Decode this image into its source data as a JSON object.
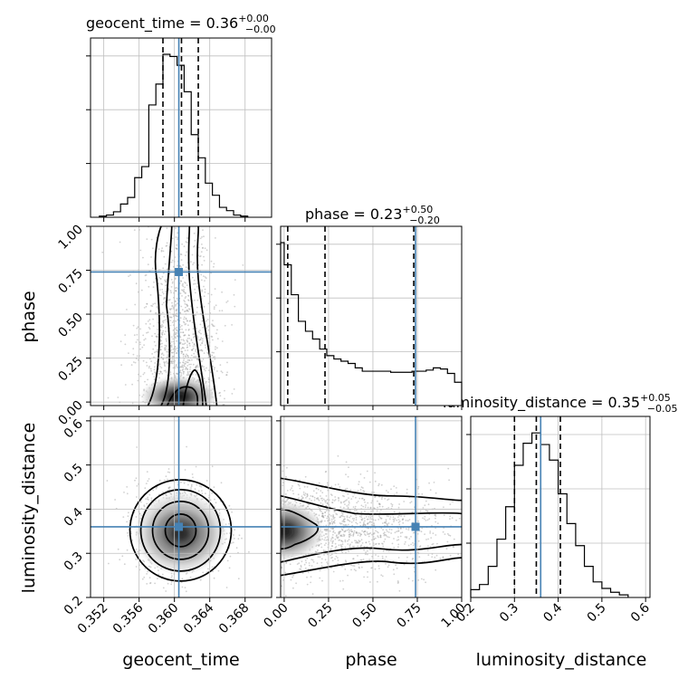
{
  "colors": {
    "truth": "#4682b4",
    "hist": "#000000",
    "grid": "#bfbfbf",
    "quantile": "#000000"
  },
  "chart_data": {
    "type": "corner",
    "parameters": [
      "geocent_time",
      "phase",
      "luminosity_distance"
    ],
    "truths": {
      "geocent_time": 0.3605,
      "phase": 0.74,
      "luminosity_distance": 0.36
    },
    "titles": {
      "geocent_time": {
        "name": "geocent_time",
        "median": "0.36",
        "plus": "+0.00",
        "minus": "−0.00"
      },
      "phase": {
        "name": "phase",
        "median": "0.23",
        "plus": "+0.50",
        "minus": "−0.20"
      },
      "luminosity_distance": {
        "name": "luminosity_distance",
        "median": "0.35",
        "plus": "+0.05",
        "minus": "−0.05"
      }
    },
    "ranges": {
      "geocent_time": [
        0.3505,
        0.371
      ],
      "phase": [
        -0.02,
        1.0
      ],
      "luminosity_distance": [
        0.2,
        0.61
      ]
    },
    "ticks": {
      "geocent_time": {
        "values": [
          0.352,
          0.356,
          0.36,
          0.364,
          0.368
        ],
        "labels": [
          "0.352",
          "0.356",
          "0.360",
          "0.364",
          "0.368"
        ]
      },
      "phase": {
        "values": [
          0.0,
          0.25,
          0.5,
          0.75,
          1.0
        ],
        "labels": [
          "0.00",
          "0.25",
          "0.50",
          "0.75",
          "1.00"
        ]
      },
      "luminosity_distance": {
        "values": [
          0.2,
          0.3,
          0.4,
          0.5,
          0.6
        ],
        "labels": [
          "0.2",
          "0.3",
          "0.4",
          "0.5",
          "0.6"
        ]
      }
    },
    "quantiles": {
      "geocent_time": [
        0.3587,
        0.3608,
        0.3627
      ],
      "phase": [
        0.02,
        0.23,
        0.73
      ],
      "luminosity_distance": [
        0.3,
        0.35,
        0.405
      ]
    },
    "hist_geocent_time": {
      "bin_edges": [
        0.3515,
        0.3523,
        0.3531,
        0.3539,
        0.3547,
        0.3555,
        0.3563,
        0.3571,
        0.3579,
        0.3587,
        0.3595,
        0.3603,
        0.3611,
        0.3619,
        0.3627,
        0.3635,
        0.3643,
        0.3651,
        0.3659,
        0.3667,
        0.3675,
        0.3683
      ],
      "counts": [
        1,
        2,
        5,
        12,
        18,
        36,
        46,
        102,
        121,
        148,
        146,
        138,
        114,
        75,
        54,
        31,
        20,
        9,
        6,
        2,
        1
      ]
    },
    "hist_phase": {
      "bin_edges": [
        -0.02,
        0.0,
        0.04,
        0.08,
        0.12,
        0.16,
        0.2,
        0.24,
        0.28,
        0.32,
        0.36,
        0.4,
        0.44,
        0.48,
        0.52,
        0.56,
        0.6,
        0.64,
        0.68,
        0.72,
        0.76,
        0.8,
        0.84,
        0.88,
        0.92,
        0.96,
        1.0
      ],
      "counts": [
        147,
        127,
        100,
        76,
        67,
        60,
        51,
        45,
        42,
        40,
        38,
        34,
        31,
        31,
        31,
        31,
        30,
        30,
        30,
        31,
        31,
        32,
        34,
        33,
        29,
        21
      ]
    },
    "hist_luminosity_distance": {
      "bin_edges": [
        0.2,
        0.22,
        0.24,
        0.26,
        0.28,
        0.3,
        0.32,
        0.34,
        0.36,
        0.38,
        0.4,
        0.42,
        0.44,
        0.46,
        0.48,
        0.5,
        0.52,
        0.54,
        0.56
      ],
      "counts": [
        6,
        10,
        24,
        45,
        70,
        102,
        119,
        127,
        118,
        106,
        80,
        57,
        40,
        24,
        12,
        7,
        4,
        2
      ]
    }
  }
}
